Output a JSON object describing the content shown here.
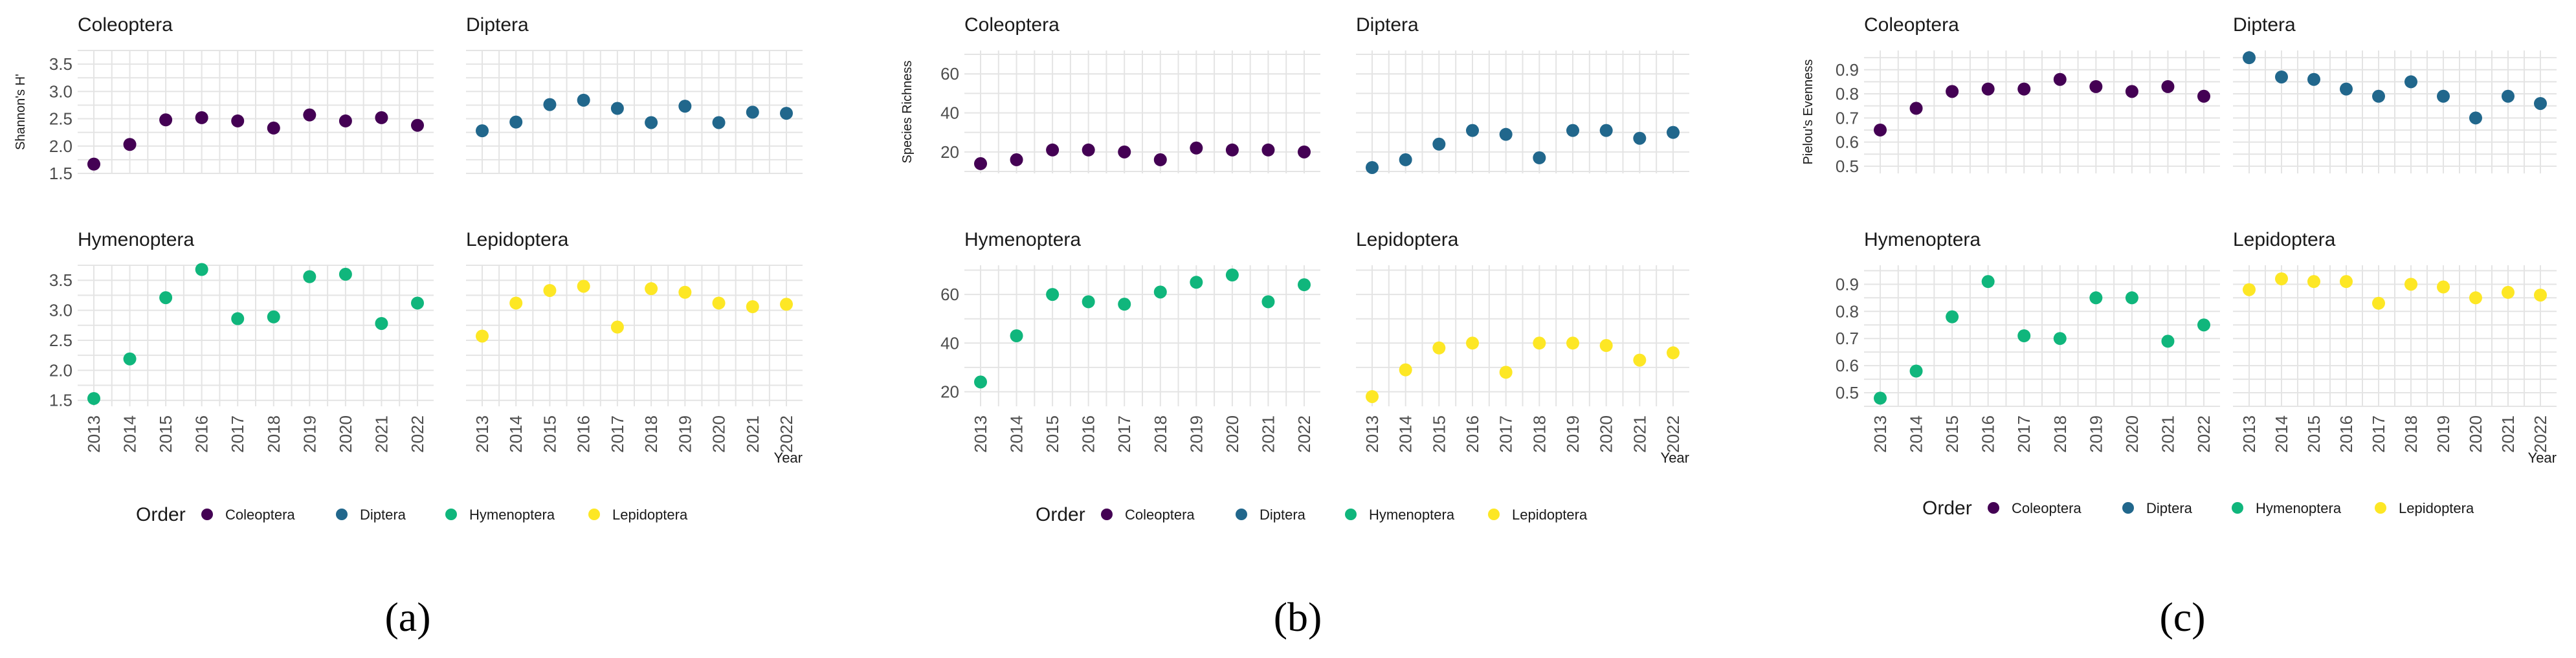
{
  "chart_data": [
    {
      "type": "scatter",
      "caption": "(a)",
      "ylabel": "Shannon's H'",
      "xlabel": "Year",
      "legend": {
        "title": "Order",
        "position": "bottom"
      },
      "years": [
        "2013",
        "2014",
        "2015",
        "2016",
        "2017",
        "2018",
        "2019",
        "2020",
        "2021",
        "2022"
      ],
      "row_ylims": [
        [
          1.5,
          3.75
        ],
        [
          1.4,
          3.75
        ]
      ],
      "row_yticks": [
        [
          "1.5",
          "2.0",
          "2.5",
          "3.0",
          "3.5"
        ],
        [
          "1.5",
          "2.0",
          "2.5",
          "3.0",
          "3.5"
        ]
      ],
      "series": [
        {
          "name": "Coleoptera",
          "values": [
            1.67,
            2.03,
            2.48,
            2.52,
            2.46,
            2.33,
            2.57,
            2.46,
            2.52,
            2.38
          ]
        },
        {
          "name": "Diptera",
          "values": [
            2.28,
            2.44,
            2.76,
            2.84,
            2.69,
            2.43,
            2.73,
            2.43,
            2.62,
            2.6
          ]
        },
        {
          "name": "Hymenoptera",
          "values": [
            1.53,
            2.19,
            3.21,
            3.68,
            2.86,
            2.89,
            3.56,
            3.6,
            2.78,
            3.12
          ]
        },
        {
          "name": "Lepidoptera",
          "values": [
            2.57,
            3.12,
            3.33,
            3.4,
            2.72,
            3.36,
            3.3,
            3.12,
            3.06,
            3.1
          ]
        }
      ]
    },
    {
      "type": "scatter",
      "caption": "(b)",
      "ylabel": "Species Richness",
      "xlabel": "Year",
      "legend": {
        "title": "Order",
        "position": "bottom"
      },
      "years": [
        "2013",
        "2014",
        "2015",
        "2016",
        "2017",
        "2018",
        "2019",
        "2020",
        "2021",
        "2022"
      ],
      "row_ylims": [
        [
          9,
          72
        ],
        [
          14,
          72
        ]
      ],
      "row_yticks": [
        [
          "20",
          "40",
          "60"
        ],
        [
          "20",
          "40",
          "60"
        ]
      ],
      "series": [
        {
          "name": "Coleoptera",
          "values": [
            14,
            16,
            21,
            21,
            20,
            16,
            22,
            21,
            21,
            20
          ]
        },
        {
          "name": "Diptera",
          "values": [
            12,
            16,
            24,
            31,
            29,
            17,
            31,
            31,
            27,
            30
          ]
        },
        {
          "name": "Hymenoptera",
          "values": [
            24,
            43,
            60,
            57,
            56,
            61,
            65,
            68,
            57,
            64
          ]
        },
        {
          "name": "Lepidoptera",
          "values": [
            18,
            29,
            38,
            40,
            28,
            40,
            40,
            39,
            33,
            36
          ]
        }
      ]
    },
    {
      "type": "scatter",
      "caption": "(c)",
      "ylabel": "Pielou's Evenness",
      "xlabel": "Year",
      "legend": {
        "title": "Order",
        "position": "bottom"
      },
      "years": [
        "2013",
        "2014",
        "2015",
        "2016",
        "2017",
        "2018",
        "2019",
        "2020",
        "2021",
        "2022"
      ],
      "row_ylims": [
        [
          0.47,
          0.98
        ],
        [
          0.45,
          0.97
        ]
      ],
      "row_yticks": [
        [
          "0.5",
          "0.6",
          "0.7",
          "0.8",
          "0.9"
        ],
        [
          "0.5",
          "0.6",
          "0.7",
          "0.8",
          "0.9"
        ]
      ],
      "series": [
        {
          "name": "Coleoptera",
          "values": [
            0.65,
            0.74,
            0.81,
            0.82,
            0.82,
            0.86,
            0.83,
            0.81,
            0.83,
            0.79
          ]
        },
        {
          "name": "Diptera",
          "values": [
            0.95,
            0.87,
            0.86,
            0.82,
            0.79,
            0.85,
            0.79,
            0.7,
            0.79,
            0.76
          ]
        },
        {
          "name": "Hymenoptera",
          "values": [
            0.48,
            0.58,
            0.78,
            0.91,
            0.71,
            0.7,
            0.85,
            0.85,
            0.69,
            0.75
          ]
        },
        {
          "name": "Lepidoptera",
          "values": [
            0.88,
            0.92,
            0.91,
            0.91,
            0.83,
            0.9,
            0.89,
            0.85,
            0.87,
            0.86
          ]
        }
      ]
    }
  ],
  "colors": {
    "Coleoptera": "#440154",
    "Diptera": "#21678c",
    "Hymenoptera": "#10b67c",
    "Lepidoptera": "#fde725"
  }
}
